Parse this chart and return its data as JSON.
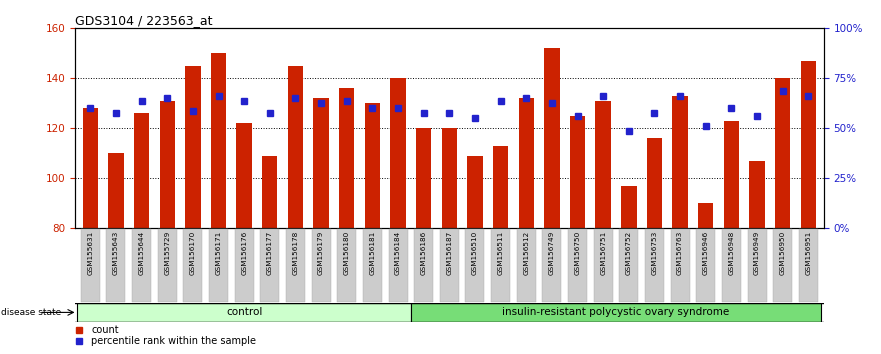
{
  "title": "GDS3104 / 223563_at",
  "samples": [
    "GSM155631",
    "GSM155643",
    "GSM155644",
    "GSM155729",
    "GSM156170",
    "GSM156171",
    "GSM156176",
    "GSM156177",
    "GSM156178",
    "GSM156179",
    "GSM156180",
    "GSM156181",
    "GSM156184",
    "GSM156186",
    "GSM156187",
    "GSM156510",
    "GSM156511",
    "GSM156512",
    "GSM156749",
    "GSM156750",
    "GSM156751",
    "GSM156752",
    "GSM156753",
    "GSM156763",
    "GSM156946",
    "GSM156948",
    "GSM156949",
    "GSM156950",
    "GSM156951"
  ],
  "bar_values": [
    128,
    110,
    126,
    131,
    145,
    150,
    122,
    109,
    145,
    132,
    136,
    130,
    140,
    120,
    120,
    109,
    113,
    132,
    152,
    125,
    131,
    97,
    116,
    133,
    90,
    123,
    107,
    140,
    147
  ],
  "percentile_values": [
    128,
    126,
    131,
    132,
    127,
    133,
    131,
    126,
    132,
    130,
    131,
    128,
    128,
    126,
    126,
    124,
    131,
    132,
    130,
    125,
    133,
    119,
    126,
    133,
    121,
    128,
    125,
    135,
    133
  ],
  "control_count": 13,
  "disease_count": 16,
  "group_labels": [
    "control",
    "insulin-resistant polycystic ovary syndrome"
  ],
  "bar_color": "#cc2200",
  "percentile_color": "#2222cc",
  "ymin": 80,
  "ymax": 160,
  "yticks": [
    80,
    100,
    120,
    140,
    160
  ],
  "right_yticks_pct": [
    0,
    25,
    50,
    75,
    100
  ],
  "right_yticklabels": [
    "0%",
    "25%",
    "50%",
    "75%",
    "100%"
  ],
  "left_tick_color": "#cc2200",
  "right_tick_color": "#2222cc",
  "plot_bg": "#ffffff",
  "grid_color": "#555555",
  "control_bg": "#ccffcc",
  "disease_bg": "#77dd77",
  "xticklabel_bg": "#cccccc"
}
